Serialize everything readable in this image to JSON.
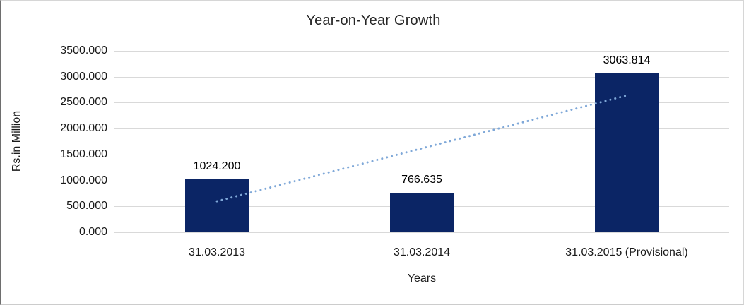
{
  "chart_data": {
    "type": "bar",
    "title": "Year-on-Year Growth",
    "xlabel": "Years",
    "ylabel": "Rs.in Million",
    "categories": [
      "31.03.2013",
      "31.03.2014",
      "31.03.2015 (Provisional)"
    ],
    "values": [
      1024.2,
      766.635,
      3063.814
    ],
    "data_labels": [
      "1024.200",
      "766.635",
      "3063.814"
    ],
    "y_ticks": [
      "3500.000",
      "3000.000",
      "2500.000",
      "2000.000",
      "1500.000",
      "1000.000",
      "500.000",
      "0.000"
    ],
    "y_tick_values": [
      3500,
      3000,
      2500,
      2000,
      1500,
      1000,
      500,
      0
    ],
    "ylim": [
      0,
      3500
    ],
    "grid": true,
    "legend": "none",
    "colors": {
      "bar": "#0b2565",
      "trendline": "#7fa8d8",
      "gridline": "#d9d9d9",
      "text": "#1a1a1a"
    },
    "trendline": {
      "type": "linear",
      "style": "dotted",
      "start_value": 598.4,
      "end_value": 2638.0
    }
  }
}
